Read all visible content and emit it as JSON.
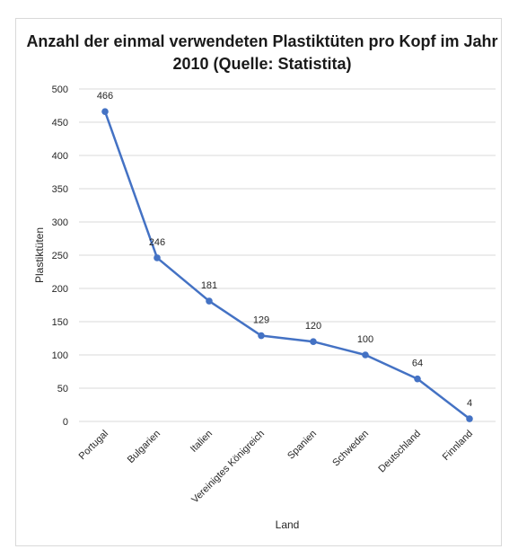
{
  "chart_data": {
    "type": "line",
    "title": "Anzahl der einmal verwendeten Plastiktüten pro Kopf im Jahr 2010 (Quelle: Statistita)",
    "xlabel": "Land",
    "ylabel": "Plastiktüten",
    "categories": [
      "Portugal",
      "Bulgarien",
      "Italien",
      "Vereinigtes Königreich",
      "Spanien",
      "Schweden",
      "Deutschland",
      "Finnland"
    ],
    "series": [
      {
        "values": [
          466,
          246,
          181,
          129,
          120,
          100,
          64,
          4
        ]
      }
    ],
    "data_labels": [
      "466",
      "246",
      "181",
      "129",
      "120",
      "100",
      "64",
      "4"
    ],
    "yticks": [
      "0",
      "50",
      "100",
      "150",
      "200",
      "250",
      "300",
      "350",
      "400",
      "450",
      "500"
    ],
    "ylim": [
      0,
      500
    ],
    "grid": true,
    "legend": "none",
    "line_color": "#4472c4",
    "grid_color": "#d9d9d9"
  }
}
